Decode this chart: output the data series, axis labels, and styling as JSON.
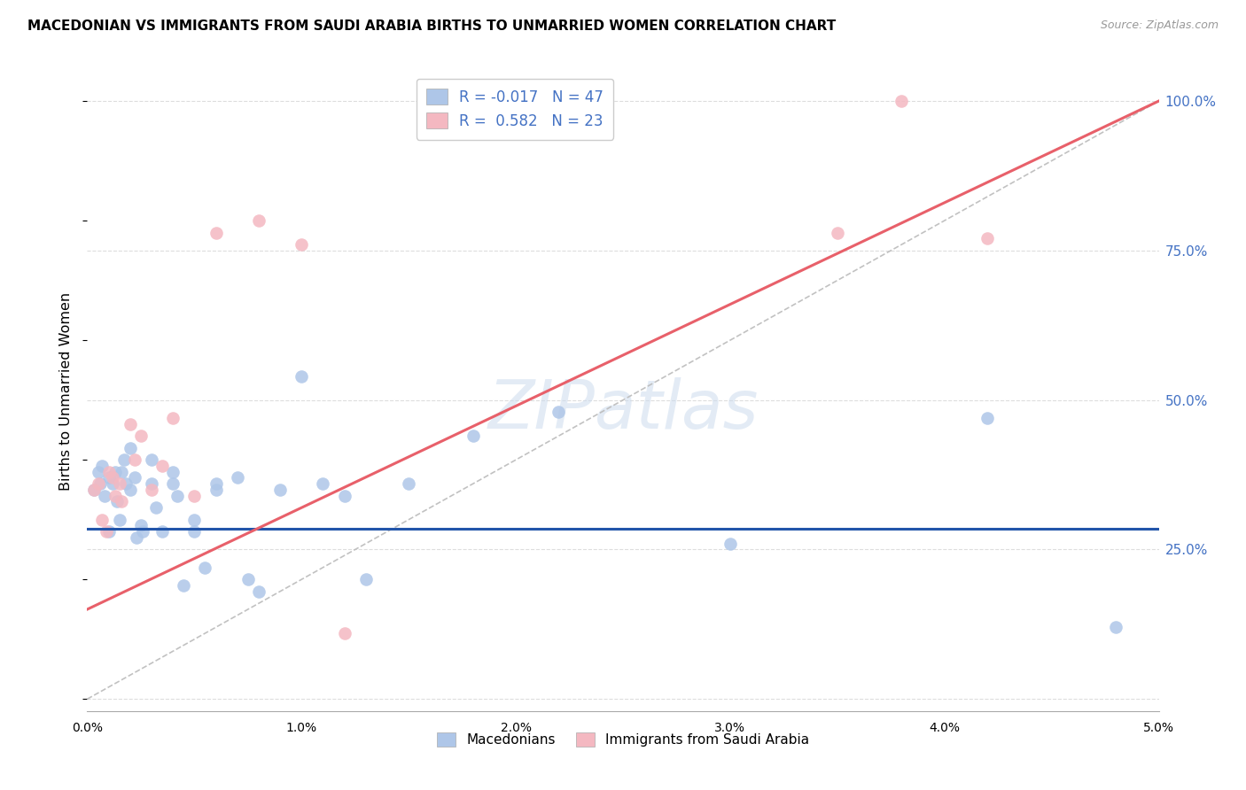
{
  "title": "MACEDONIAN VS IMMIGRANTS FROM SAUDI ARABIA BIRTHS TO UNMARRIED WOMEN CORRELATION CHART",
  "source": "Source: ZipAtlas.com",
  "ylabel": "Births to Unmarried Women",
  "legend_macedonian": "Macedonians",
  "legend_saudi": "Immigrants from Saudi Arabia",
  "r_macedonian": "-0.017",
  "n_macedonian": "47",
  "r_saudi": "0.582",
  "n_saudi": "23",
  "xmin": 0.0,
  "xmax": 0.05,
  "ymin": 0.0,
  "ymax": 1.05,
  "color_macedonian": "#aec6e8",
  "color_saudi": "#f4b8c1",
  "line_macedonian": "#2255aa",
  "line_saudi": "#e8606a",
  "line_diagonal": "#bbbbbb",
  "watermark": "ZIPatlas",
  "mac_line_y0": 0.285,
  "mac_line_y1": 0.285,
  "saudi_line_y0": 0.15,
  "saudi_line_y1": 1.0,
  "macedonian_x": [
    0.0003,
    0.0005,
    0.0006,
    0.0007,
    0.0008,
    0.001,
    0.001,
    0.0012,
    0.0013,
    0.0014,
    0.0015,
    0.0016,
    0.0017,
    0.0018,
    0.002,
    0.002,
    0.0022,
    0.0023,
    0.0025,
    0.0026,
    0.003,
    0.003,
    0.0032,
    0.0035,
    0.004,
    0.004,
    0.0042,
    0.0045,
    0.005,
    0.005,
    0.0055,
    0.006,
    0.006,
    0.007,
    0.0075,
    0.008,
    0.009,
    0.01,
    0.011,
    0.012,
    0.013,
    0.015,
    0.018,
    0.022,
    0.03,
    0.042,
    0.048
  ],
  "macedonian_y": [
    0.35,
    0.38,
    0.36,
    0.39,
    0.34,
    0.37,
    0.28,
    0.36,
    0.38,
    0.33,
    0.3,
    0.38,
    0.4,
    0.36,
    0.35,
    0.42,
    0.37,
    0.27,
    0.29,
    0.28,
    0.36,
    0.4,
    0.32,
    0.28,
    0.36,
    0.38,
    0.34,
    0.19,
    0.3,
    0.28,
    0.22,
    0.35,
    0.36,
    0.37,
    0.2,
    0.18,
    0.35,
    0.54,
    0.36,
    0.34,
    0.2,
    0.36,
    0.44,
    0.48,
    0.26,
    0.47,
    0.12
  ],
  "saudi_x": [
    0.0003,
    0.0005,
    0.0007,
    0.0009,
    0.001,
    0.0012,
    0.0013,
    0.0015,
    0.0016,
    0.002,
    0.0022,
    0.0025,
    0.003,
    0.0035,
    0.004,
    0.005,
    0.006,
    0.008,
    0.01,
    0.012,
    0.035,
    0.038,
    0.042
  ],
  "saudi_y": [
    0.35,
    0.36,
    0.3,
    0.28,
    0.38,
    0.37,
    0.34,
    0.36,
    0.33,
    0.46,
    0.4,
    0.44,
    0.35,
    0.39,
    0.47,
    0.34,
    0.78,
    0.8,
    0.76,
    0.11,
    0.78,
    1.0,
    0.77
  ]
}
